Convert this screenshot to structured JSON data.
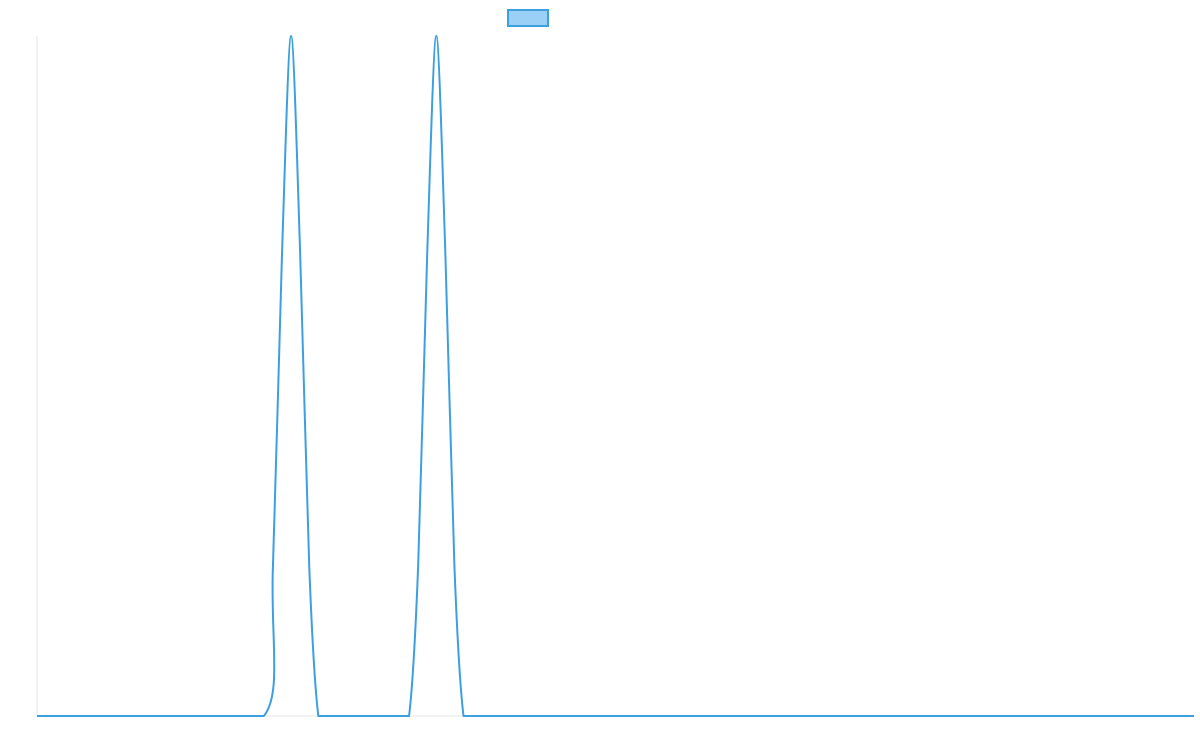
{
  "chart_data": {
    "type": "line",
    "title": "",
    "xlabel": "",
    "ylabel": "",
    "x": [
      0,
      25,
      50,
      52,
      54,
      56,
      58,
      60,
      62,
      64,
      66,
      75,
      80,
      82,
      84,
      86,
      88,
      90,
      92,
      94,
      96,
      100,
      150,
      200,
      255
    ],
    "series": [
      {
        "values": [
          0,
          0,
          0,
          0.22,
          0.68,
          1.0,
          0.68,
          0.22,
          0,
          0,
          0,
          0,
          0,
          0,
          0.22,
          0.68,
          1.0,
          0.68,
          0.22,
          0,
          0,
          0,
          0,
          0,
          0
        ],
        "color": "#3b9fe0"
      }
    ],
    "xlim": [
      0,
      255
    ],
    "ylim": [
      0,
      1
    ],
    "grid": false,
    "legend": {
      "placement": "top-center",
      "swatch_fill": "#9ad0f5",
      "swatch_border": "#3b9fe0"
    },
    "axis_color": "#e6e6e6"
  }
}
